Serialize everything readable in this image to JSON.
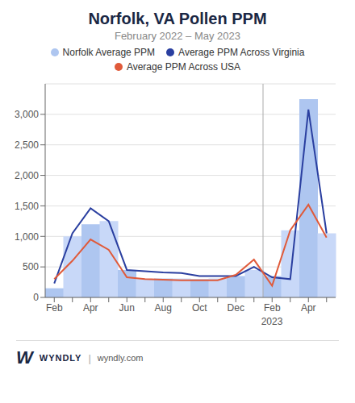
{
  "chart_data": {
    "type": "bar",
    "title": "Norfolk, VA Pollen PPM",
    "subtitle": "February 2022 – May 2023",
    "categories": [
      "Feb",
      null,
      "Apr",
      null,
      "Jun",
      null,
      "Aug",
      null,
      "Oct",
      null,
      "Dec",
      null,
      "Feb",
      null,
      "Apr",
      null
    ],
    "series": [
      {
        "name": "Norfolk Average PPM",
        "type": "bar",
        "color": "#aec6f0",
        "colors": [
          "#aec6f0",
          "#c8d8f8",
          "#aec6f0",
          "#c8d8f8",
          "#aec6f0",
          "#c8d8f8",
          "#aec6f0",
          "#c8d8f8",
          "#aec6f0",
          "#c8d8f8",
          "#aec6f0",
          "#c8d8f8",
          "#aec6f0",
          "#c8d8f8",
          "#aec6f0",
          "#c8d8f8"
        ],
        "values": [
          150,
          1000,
          1200,
          1250,
          450,
          300,
          310,
          310,
          300,
          310,
          350,
          450,
          350,
          1100,
          3250,
          1050
        ]
      },
      {
        "name": "Average PPM Across Virginia",
        "type": "line",
        "color": "#2a3fa0",
        "values": [
          230,
          1050,
          1460,
          1250,
          450,
          430,
          410,
          400,
          350,
          350,
          350,
          500,
          330,
          300,
          3080,
          1050
        ]
      },
      {
        "name": "Average PPM Across USA",
        "type": "line",
        "color": "#e05a3a",
        "values": [
          300,
          600,
          950,
          780,
          330,
          300,
          290,
          280,
          280,
          280,
          370,
          620,
          190,
          1100,
          1520,
          980
        ]
      }
    ],
    "ylim": [
      0,
      3500
    ],
    "yticks": [
      0,
      500,
      {
        "value": 1000,
        "label": "1,000"
      },
      {
        "value": 1500,
        "label": "1,500"
      },
      {
        "value": 2000,
        "label": "2,000"
      },
      {
        "value": 2500,
        "label": "2,500"
      },
      {
        "value": 3000,
        "label": "3,000"
      }
    ],
    "grid": true,
    "legend": "top",
    "annotations": [
      {
        "text": "2023",
        "x": 11.5
      },
      {
        "text": "W"
      },
      {
        "text": "WYNDLY"
      },
      {
        "text": "|"
      },
      {
        "text": "wyndly.com"
      }
    ]
  }
}
